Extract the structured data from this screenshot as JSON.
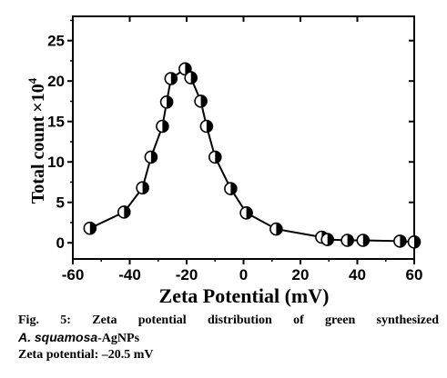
{
  "chart_data": {
    "type": "line",
    "xlabel": "Zeta Potential (mV)",
    "ylabel": "Total count × 10⁴",
    "ylabel_main": "Total count",
    "ylabel_mult": "×",
    "ylabel_base": "10",
    "ylabel_exp": "4",
    "xlim": [
      -60,
      60
    ],
    "ylim": [
      -2,
      28
    ],
    "xticks": [
      -60,
      -40,
      -20,
      0,
      20,
      40,
      60
    ],
    "xtick_labels": [
      "-60",
      "-40",
      "-20",
      "0",
      "20",
      "40",
      "60"
    ],
    "yticks": [
      0,
      5,
      10,
      15,
      20,
      25
    ],
    "ytick_labels": [
      "0",
      "5",
      "10",
      "15",
      "20",
      "25"
    ],
    "grid": false,
    "marker": "half-filled circle",
    "series": [
      {
        "x": [
          -54,
          -42,
          -35.5,
          -32.5,
          -28.5,
          -27,
          -25.5,
          -20.5,
          -18.5,
          -15,
          -13,
          -10,
          -4.5,
          1,
          11.5,
          27.5,
          29.5,
          36.5,
          42,
          55,
          60
        ],
        "y": [
          1.8,
          3.8,
          6.8,
          10.6,
          14.4,
          17.4,
          20.3,
          21.5,
          20.4,
          17.5,
          14.4,
          10.6,
          6.7,
          3.7,
          1.7,
          0.7,
          0.4,
          0.3,
          0.3,
          0.2,
          0.1
        ]
      }
    ]
  },
  "caption": {
    "line1": "Fig. 5: Zeta potential distribution of green synthesized",
    "species": "A. squamosa",
    "suffix": "-AgNPs",
    "line3": "Zeta potential: –20.5 mV"
  }
}
